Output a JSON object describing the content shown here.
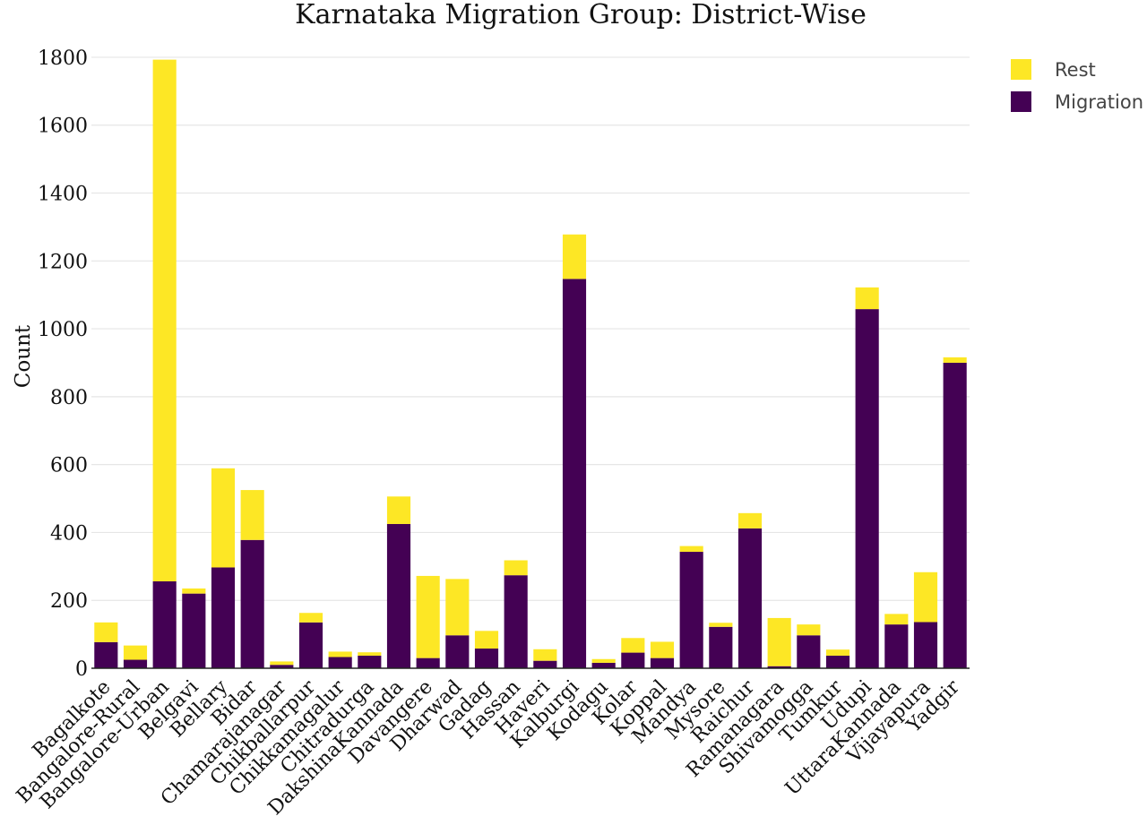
{
  "chart_data": {
    "type": "bar",
    "stacked": true,
    "title": "Karnataka Migration Group: District-Wise",
    "xlabel": "",
    "ylabel": "Count",
    "ylim": [
      0,
      1850
    ],
    "yticks": [
      0,
      200,
      400,
      600,
      800,
      1000,
      1200,
      1400,
      1600,
      1800
    ],
    "grid": true,
    "legend_position": "top-right",
    "categories": [
      "Bagalkote",
      "Bangalore-Rural",
      "Bangalore-Urban",
      "Belgavi",
      "Bellary",
      "Bidar",
      "Chamarajanagar",
      "Chikballarpur",
      "Chikkamagalur",
      "Chitradurga",
      "DakshinaKannada",
      "Davangere",
      "Dharwad",
      "Gadag",
      "Hassan",
      "Haveri",
      "Kalburgi",
      "Kodagu",
      "Kolar",
      "Koppal",
      "Mandya",
      "Mysore",
      "Raichur",
      "Ramanagara",
      "Shivamogga",
      "Tumkur",
      "Udupi",
      "UttaraKannada",
      "Vijayapura",
      "Yadgir"
    ],
    "series": [
      {
        "name": "Migration",
        "color": "#440154",
        "values": [
          77,
          25,
          256,
          220,
          297,
          378,
          10,
          135,
          33,
          37,
          425,
          30,
          97,
          58,
          274,
          22,
          1147,
          16,
          46,
          30,
          343,
          122,
          412,
          6,
          97,
          37,
          1058,
          129,
          136,
          900
        ]
      },
      {
        "name": "Rest",
        "color": "#FDE725",
        "values": [
          58,
          42,
          1537,
          15,
          292,
          147,
          10,
          28,
          16,
          10,
          81,
          242,
          166,
          52,
          44,
          34,
          131,
          11,
          43,
          48,
          17,
          12,
          45,
          142,
          32,
          18,
          64,
          31,
          147,
          16
        ]
      }
    ],
    "legend": [
      {
        "name": "Rest",
        "color": "#FDE725"
      },
      {
        "name": "Migration",
        "color": "#440154"
      }
    ]
  }
}
